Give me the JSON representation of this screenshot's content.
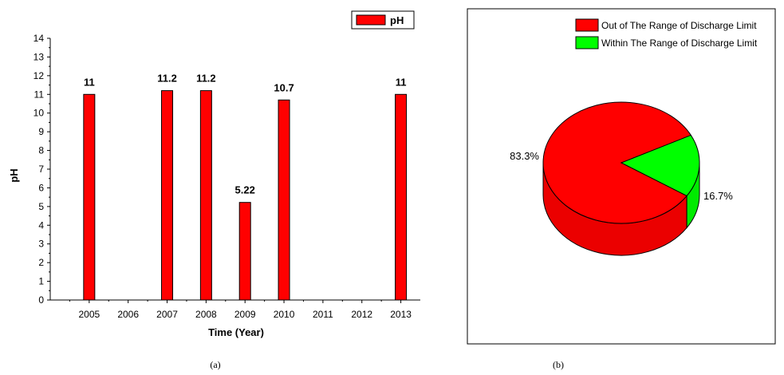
{
  "chart_data": [
    {
      "type": "bar",
      "panel_caption": "(a)",
      "xlabel": "Time (Year)",
      "ylabel": "pH",
      "ylim": [
        0,
        14
      ],
      "yticks": [
        0,
        1,
        2,
        3,
        4,
        5,
        6,
        7,
        8,
        9,
        10,
        11,
        12,
        13,
        14
      ],
      "categories": [
        "2005",
        "2006",
        "2007",
        "2008",
        "2009",
        "2010",
        "2011",
        "2012",
        "2013"
      ],
      "series": [
        {
          "name": "pH",
          "color": "#ff0000",
          "values": [
            11,
            null,
            11.2,
            11.2,
            5.22,
            10.7,
            null,
            null,
            11
          ],
          "value_labels": [
            "11",
            "",
            "11.2",
            "11.2",
            "5.22",
            "10.7",
            "",
            "",
            "11"
          ]
        }
      ],
      "legend": {
        "position": "top-right",
        "entries": [
          "pH"
        ]
      },
      "grid": false
    },
    {
      "type": "pie",
      "style": "3d",
      "panel_caption": "(b)",
      "slices": [
        {
          "label": "Out of The Range of Discharge Limit",
          "value": 83.3,
          "value_label": "83.3%",
          "color": "#ff0000"
        },
        {
          "label": "Within The Range of Discharge Limit",
          "value": 16.7,
          "value_label": "16.7%",
          "color": "#00ff00"
        }
      ],
      "legend": {
        "position": "top-right"
      }
    }
  ]
}
